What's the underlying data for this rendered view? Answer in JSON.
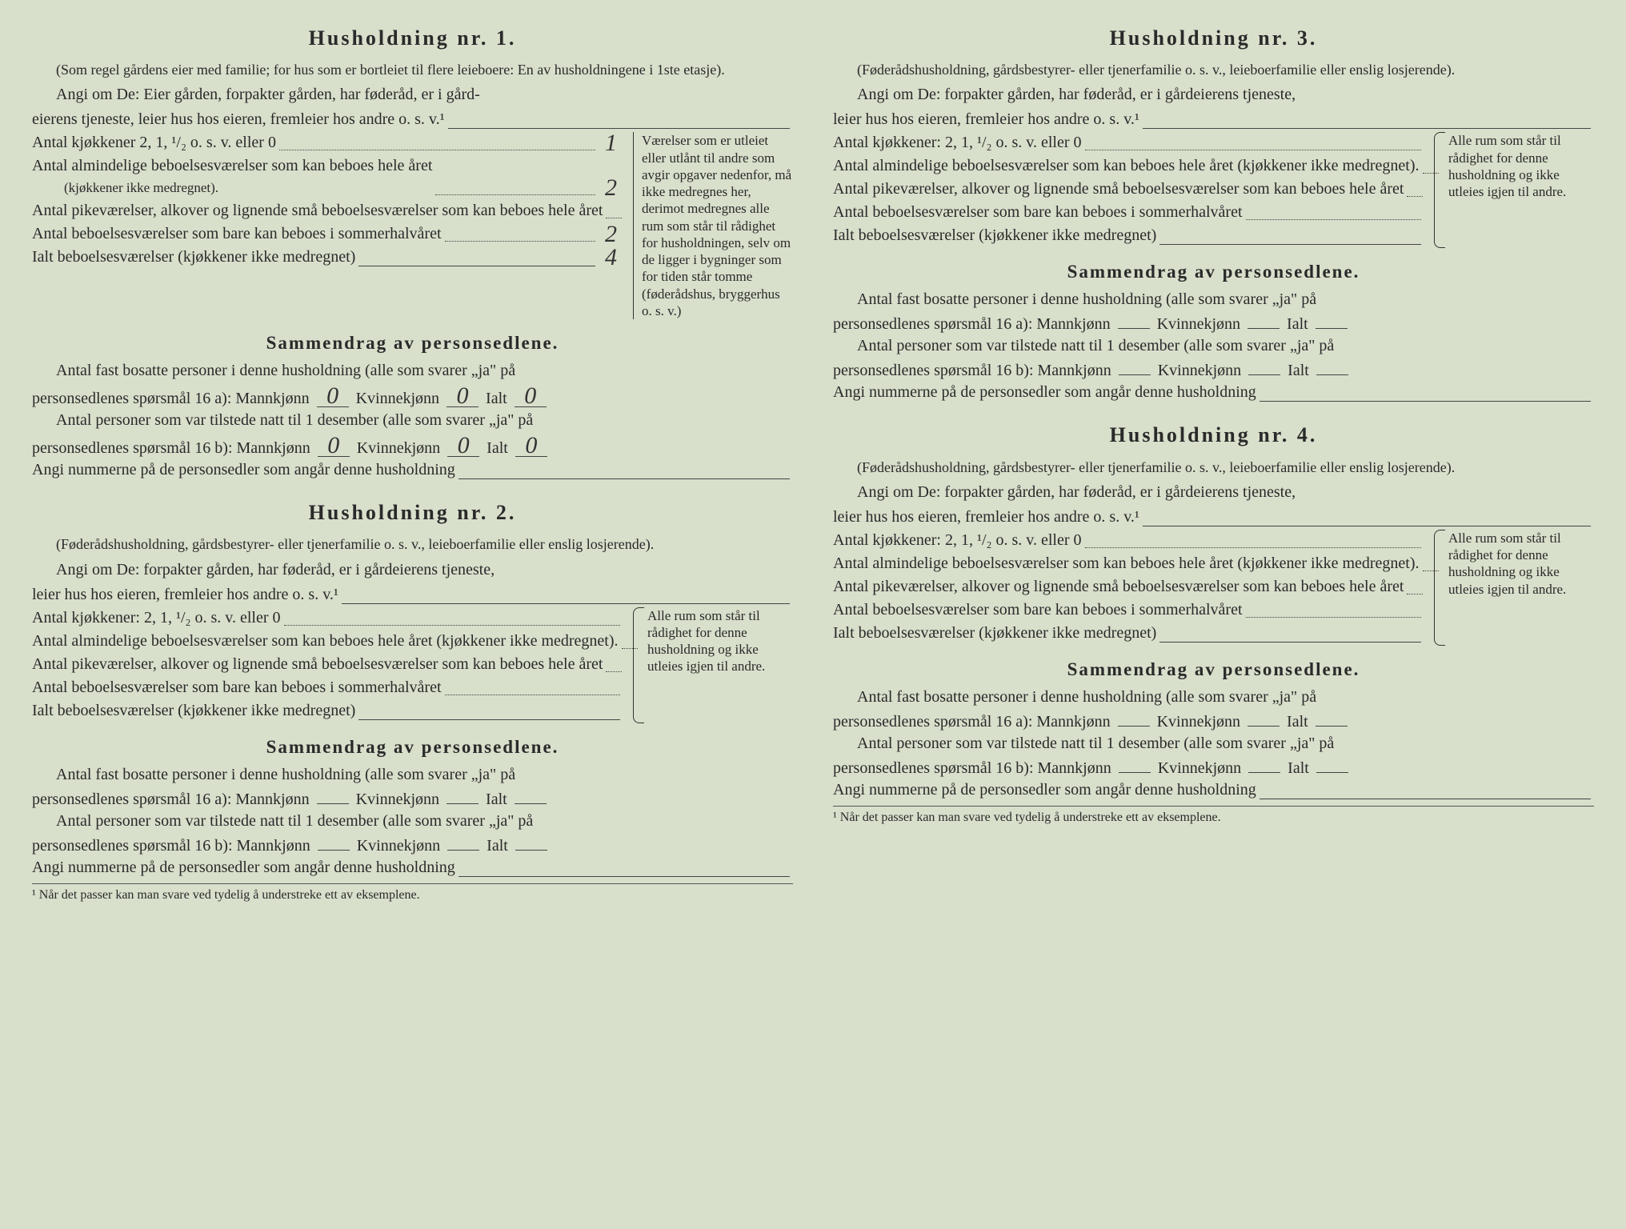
{
  "background_color": "#d8dfcb",
  "text_color": "#2a2a2a",
  "font_family": "serif",
  "sections": [
    {
      "id": "h1",
      "title": "Husholdning nr. 1.",
      "sub_note": "(Som regel gårdens eier med familie; for hus som er bortleiet til flere leieboere: En av husholdningene i 1ste etasje).",
      "angi_intro": "Angi om De:  Eier gården, forpakter gården, har føderåd, er i gård-",
      "angi_cont": "eierens tjeneste, leier hus hos eieren, fremleier hos andre o. s. v.¹",
      "rows": [
        {
          "label": "Antal kjøkkener 2, 1, ¹/₂ o. s. v. eller 0",
          "value": "1"
        },
        {
          "label": "Antal almindelige beboelsesværelser som kan beboes hele året",
          "sublabel": "(kjøkkener ikke medregnet).",
          "value": "2"
        },
        {
          "label": "Antal pikeværelser, alkover og lignende små beboelsesværelser som kan beboes hele året",
          "value": ""
        },
        {
          "label": "Antal beboelsesværelser som bare kan beboes i sommerhalvåret",
          "value": "2"
        },
        {
          "label": "Ialt beboelsesværelser (kjøkkener ikke medregnet)",
          "value": "4"
        }
      ],
      "right_note": "Værelser som er utleiet eller utlånt til andre som avgir opgaver nedenfor, må ikke medregnes her, derimot medregnes alle rum som står til rådighet for husholdningen, selv om de ligger i bygninger som for tiden står tomme (føderådshus, bryggerhus o. s. v.)",
      "sammendrag_title": "Sammendrag av personsedlene.",
      "s_line1a": "Antal fast bosatte personer i denne husholdning (alle som svarer „ja\" på",
      "s_line1b": "personsedlenes spørsmål 16 a): Mannkjønn",
      "s_mk1": "0",
      "s_kk1": "0",
      "s_ialt1": "0",
      "s_line2a": "Antal personer som var tilstede natt til 1 desember (alle som svarer „ja\" på",
      "s_line2b": "personsedlenes spørsmål 16 b): Mannkjønn",
      "s_mk2": "0",
      "s_kk2": "0",
      "s_ialt2": "0",
      "s_line3": "Angi nummerne på de personsedler som angår denne husholdning"
    },
    {
      "id": "h2",
      "title": "Husholdning nr. 2.",
      "sub_note": "(Føderådshusholdning, gårdsbestyrer- eller tjenerfamilie o. s. v., leieboerfamilie eller enslig losjerende).",
      "angi_intro": "Angi om De:  forpakter gården, har føderåd, er i gårdeierens tjeneste,",
      "angi_cont": "leier hus hos eieren, fremleier hos andre o. s. v.¹",
      "rows": [
        {
          "label": "Antal kjøkkener: 2, 1, ¹/₂ o. s. v. eller 0",
          "value": ""
        },
        {
          "label": "Antal almindelige beboelsesværelser som kan beboes hele året (kjøkkener ikke medregnet).",
          "value": ""
        },
        {
          "label": "Antal pikeværelser, alkover og lignende små beboelsesværelser som kan beboes hele året",
          "value": ""
        },
        {
          "label": "Antal beboelsesværelser som bare kan beboes i sommerhalvåret",
          "value": ""
        },
        {
          "label": "Ialt beboelsesværelser (kjøkkener ikke medregnet)",
          "value": ""
        }
      ],
      "right_note": "Alle rum som står til rådighet for denne husholdning og ikke utleies igjen til andre.",
      "sammendrag_title": "Sammendrag av personsedlene.",
      "s_line1a": "Antal fast bosatte personer i denne husholdning (alle som svarer „ja\" på",
      "s_line1b": "personsedlenes spørsmål 16 a): Mannkjønn",
      "s_mk1": "",
      "s_kk1": "",
      "s_ialt1": "",
      "s_line2a": "Antal personer som var tilstede natt til 1 desember (alle som svarer „ja\" på",
      "s_line2b": "personsedlenes spørsmål 16 b): Mannkjønn",
      "s_mk2": "",
      "s_kk2": "",
      "s_ialt2": "",
      "s_line3": "Angi nummerne på de personsedler som angår denne husholdning",
      "footnote": "¹ Når det passer kan man svare ved tydelig å understreke ett av eksemplene."
    },
    {
      "id": "h3",
      "title": "Husholdning nr. 3.",
      "sub_note": "(Føderådshusholdning, gårdsbestyrer- eller tjenerfamilie o. s. v., leieboerfamilie eller enslig losjerende).",
      "angi_intro": "Angi om De:  forpakter gården, har føderåd, er i gårdeierens tjeneste,",
      "angi_cont": "leier hus hos eieren, fremleier hos andre o. s. v.¹",
      "rows": [
        {
          "label": "Antal kjøkkener: 2, 1, ¹/₂ o. s. v. eller 0",
          "value": ""
        },
        {
          "label": "Antal almindelige beboelsesværelser som kan beboes hele året (kjøkkener ikke medregnet).",
          "value": ""
        },
        {
          "label": "Antal pikeværelser, alkover og lignende små beboelsesværelser som kan beboes hele året",
          "value": ""
        },
        {
          "label": "Antal beboelsesværelser som bare kan beboes i sommerhalvåret",
          "value": ""
        },
        {
          "label": "Ialt beboelsesværelser (kjøkkener ikke medregnet)",
          "value": ""
        }
      ],
      "right_note": "Alle rum som står til rådighet for denne husholdning og ikke utleies igjen til andre.",
      "sammendrag_title": "Sammendrag av personsedlene.",
      "s_line1a": "Antal fast bosatte personer i denne husholdning (alle som svarer „ja\" på",
      "s_line1b": "personsedlenes spørsmål 16 a): Mannkjønn",
      "s_mk1": "",
      "s_kk1": "",
      "s_ialt1": "",
      "s_line2a": "Antal personer som var tilstede natt til 1 desember (alle som svarer „ja\" på",
      "s_line2b": "personsedlenes spørsmål 16 b): Mannkjønn",
      "s_mk2": "",
      "s_kk2": "",
      "s_ialt2": "",
      "s_line3": "Angi nummerne på de personsedler som angår denne husholdning"
    },
    {
      "id": "h4",
      "title": "Husholdning nr. 4.",
      "sub_note": "(Føderådshusholdning, gårdsbestyrer- eller tjenerfamilie o. s. v., leieboerfamilie eller enslig losjerende).",
      "angi_intro": "Angi om De:  forpakter gården, har føderåd, er i gårdeierens tjeneste,",
      "angi_cont": "leier hus hos eieren, fremleier hos andre o. s. v.¹",
      "rows": [
        {
          "label": "Antal kjøkkener: 2, 1, ¹/₂ o. s. v. eller 0",
          "value": ""
        },
        {
          "label": "Antal almindelige beboelsesværelser som kan beboes hele året (kjøkkener ikke medregnet).",
          "value": ""
        },
        {
          "label": "Antal pikeværelser, alkover og lignende små beboelsesværelser som kan beboes hele året",
          "value": ""
        },
        {
          "label": "Antal beboelsesværelser som bare kan beboes i sommerhalvåret",
          "value": ""
        },
        {
          "label": "Ialt beboelsesværelser (kjøkkener ikke medregnet)",
          "value": ""
        }
      ],
      "right_note": "Alle rum som står til rådighet for denne husholdning og ikke utleies igjen til andre.",
      "sammendrag_title": "Sammendrag av personsedlene.",
      "s_line1a": "Antal fast bosatte personer i denne husholdning (alle som svarer „ja\" på",
      "s_line1b": "personsedlenes spørsmål 16 a): Mannkjønn",
      "s_mk1": "",
      "s_kk1": "",
      "s_ialt1": "",
      "s_line2a": "Antal personer som var tilstede natt til 1 desember (alle som svarer „ja\" på",
      "s_line2b": "personsedlenes spørsmål 16 b): Mannkjønn",
      "s_mk2": "",
      "s_kk2": "",
      "s_ialt2": "",
      "s_line3": "Angi nummerne på de personsedler som angår denne husholdning",
      "footnote": "¹ Når det passer kan man svare ved tydelig å understreke ett av eksemplene."
    }
  ],
  "labels": {
    "kvinnekjonn": "Kvinnekjønn",
    "ialt": "Ialt"
  }
}
